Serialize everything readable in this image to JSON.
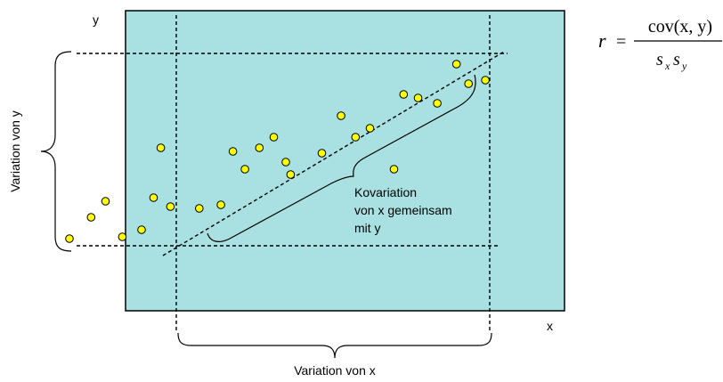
{
  "axis_labels": {
    "x": "x",
    "y": "y"
  },
  "variation_x_label": "Variation von x",
  "variation_y_label": "Variation von y",
  "covariation_label": [
    "Kovariation",
    "von x gemeinsam",
    "mit y"
  ],
  "formula": {
    "lhs": "r",
    "equals": "=",
    "numerator": "cov(x, y)",
    "denominator_s": "s",
    "sub_x": "x",
    "sub_y": "y"
  },
  "colors": {
    "plot_bg": "#a9e1e3",
    "point_fill": "#ffff00",
    "point_stroke": "#000000"
  },
  "points": [
    [
      -6.0,
      6.6
    ],
    [
      -5.1,
      7.8
    ],
    [
      -4.5,
      8.7
    ],
    [
      -3.8,
      6.7
    ],
    [
      -3.0,
      7.1
    ],
    [
      -2.5,
      8.9
    ],
    [
      -1.8,
      8.4
    ],
    [
      -0.6,
      8.3
    ],
    [
      0.3,
      8.5
    ],
    [
      0.8,
      11.5
    ],
    [
      1.9,
      11.7
    ],
    [
      -2.2,
      11.7
    ],
    [
      1.3,
      10.5
    ],
    [
      2.5,
      12.3
    ],
    [
      3.0,
      10.9
    ],
    [
      3.2,
      10.2
    ],
    [
      4.5,
      11.4
    ],
    [
      5.3,
      13.5
    ],
    [
      5.9,
      12.3
    ],
    [
      6.5,
      12.8
    ],
    [
      7.5,
      10.5
    ],
    [
      7.9,
      14.7
    ],
    [
      8.5,
      14.5
    ],
    [
      9.3,
      14.2
    ],
    [
      10.1,
      16.4
    ],
    [
      10.6,
      15.3
    ],
    [
      11.3,
      15.5
    ]
  ]
}
